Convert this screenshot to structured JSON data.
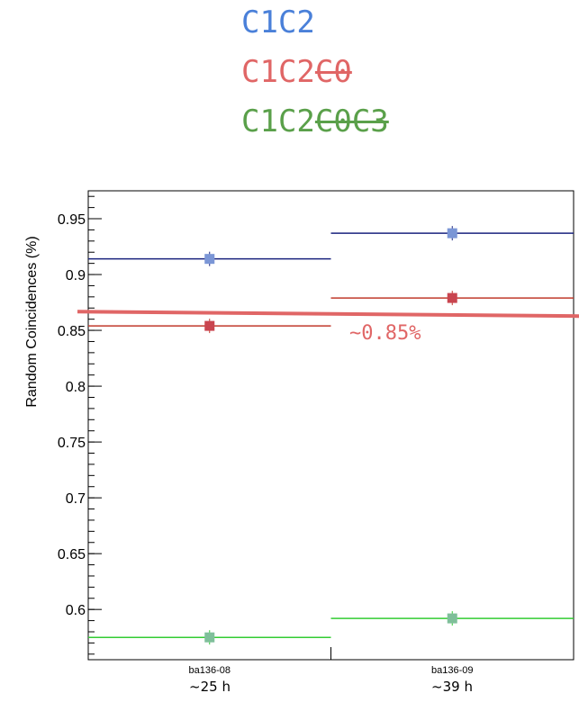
{
  "legend": [
    {
      "base": "C1C2",
      "struck": "",
      "color": "#4a80d9"
    },
    {
      "base": "C1C2",
      "struck": "C0",
      "color": "#e06666"
    },
    {
      "base": "C1C2",
      "struck": "C0C3",
      "color": "#5aa04a"
    }
  ],
  "annotation": {
    "text": "~0.85%",
    "color": "#e06666"
  },
  "bin_sublabels": [
    "~25  h",
    "~39  h"
  ],
  "chart_data": {
    "type": "scatter",
    "categories": [
      "ba136-08",
      "ba136-09"
    ],
    "ylabel": "Random Coincidences (%)",
    "ylim": [
      0.555,
      0.975
    ],
    "yticks": [
      "0.6",
      "0.65",
      "0.7",
      "0.75",
      "0.8",
      "0.85",
      "0.9",
      "0.95"
    ],
    "series": [
      {
        "values": [
          0.914,
          0.937
        ],
        "line_color": "#1a237e",
        "marker_color": "#7b96d6"
      },
      {
        "values": [
          0.854,
          0.879
        ],
        "line_color": "#c0392b",
        "marker_color": "#c9454f"
      },
      {
        "values": [
          0.575,
          0.592
        ],
        "line_color": "#33cc33",
        "marker_color": "#7fbf9a"
      }
    ],
    "reference_line": {
      "value": 0.866,
      "color": "#e06666"
    }
  }
}
